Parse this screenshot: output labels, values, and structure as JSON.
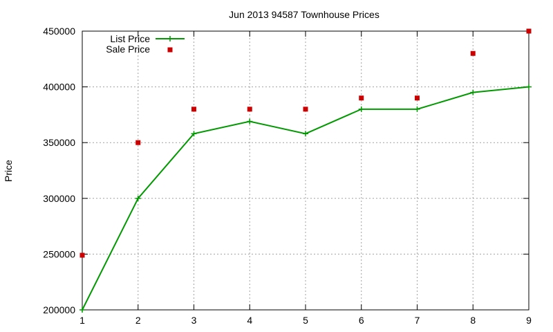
{
  "chart_data": {
    "type": "line",
    "title": "Jun 2013 94587 Townhouse Prices",
    "xlabel": "",
    "ylabel": "Price",
    "x": [
      1,
      2,
      3,
      4,
      5,
      6,
      7,
      8,
      9
    ],
    "xlim": [
      1,
      9
    ],
    "ylim": [
      200000,
      450000
    ],
    "yticks": [
      200000,
      250000,
      300000,
      350000,
      400000,
      450000
    ],
    "xticks": [
      1,
      2,
      3,
      4,
      5,
      6,
      7,
      8,
      9
    ],
    "grid": true,
    "legend_position": "top-left",
    "series": [
      {
        "name": "List Price",
        "style": "line+cross",
        "color": "#009900",
        "values": [
          200000,
          300000,
          358000,
          369000,
          358000,
          380000,
          380000,
          395000,
          400000
        ]
      },
      {
        "name": "Sale Price",
        "style": "square-points",
        "color": "#cc0000",
        "values": [
          249000,
          350000,
          380000,
          380000,
          380000,
          390000,
          390000,
          430000,
          450000
        ]
      }
    ]
  }
}
